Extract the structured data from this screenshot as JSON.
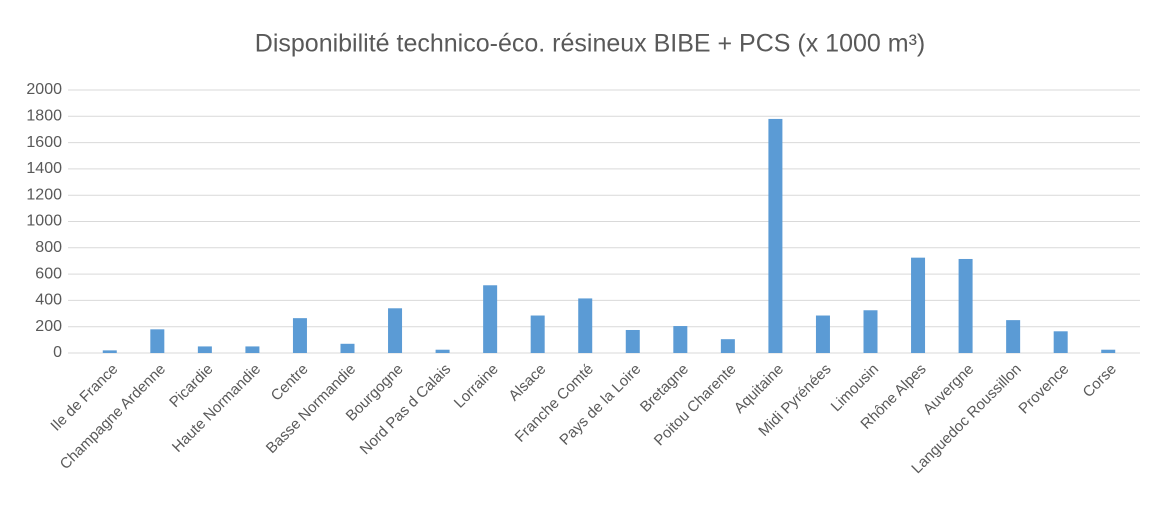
{
  "chart_data": {
    "type": "bar",
    "title": "Disponibilité technico-éco. résineux BIBE + PCS (x 1000 m³)",
    "categories": [
      "Ile de France",
      "Champagne Ardenne",
      "Picardie",
      "Haute Normandie",
      "Centre",
      "Basse Normandie",
      "Bourgogne",
      "Nord Pas d Calais",
      "Lorraine",
      "Alsace",
      "Franche Comté",
      "Pays de la Loire",
      "Bretagne",
      "Poitou Charente",
      "Aquitaine",
      "Midi Pyrénées",
      "Limousin",
      "Rhône Alpes",
      "Auvergne",
      "Languedoc Roussillon",
      "Provence",
      "Corse"
    ],
    "values": [
      20,
      180,
      50,
      50,
      265,
      70,
      340,
      25,
      515,
      285,
      415,
      175,
      205,
      105,
      1780,
      285,
      325,
      725,
      715,
      250,
      165,
      25
    ],
    "color": "#5b9bd5",
    "ylim": [
      0,
      2000
    ],
    "yticks": [
      0,
      200,
      400,
      600,
      800,
      1000,
      1200,
      1400,
      1600,
      1800,
      2000
    ],
    "grid": true
  }
}
